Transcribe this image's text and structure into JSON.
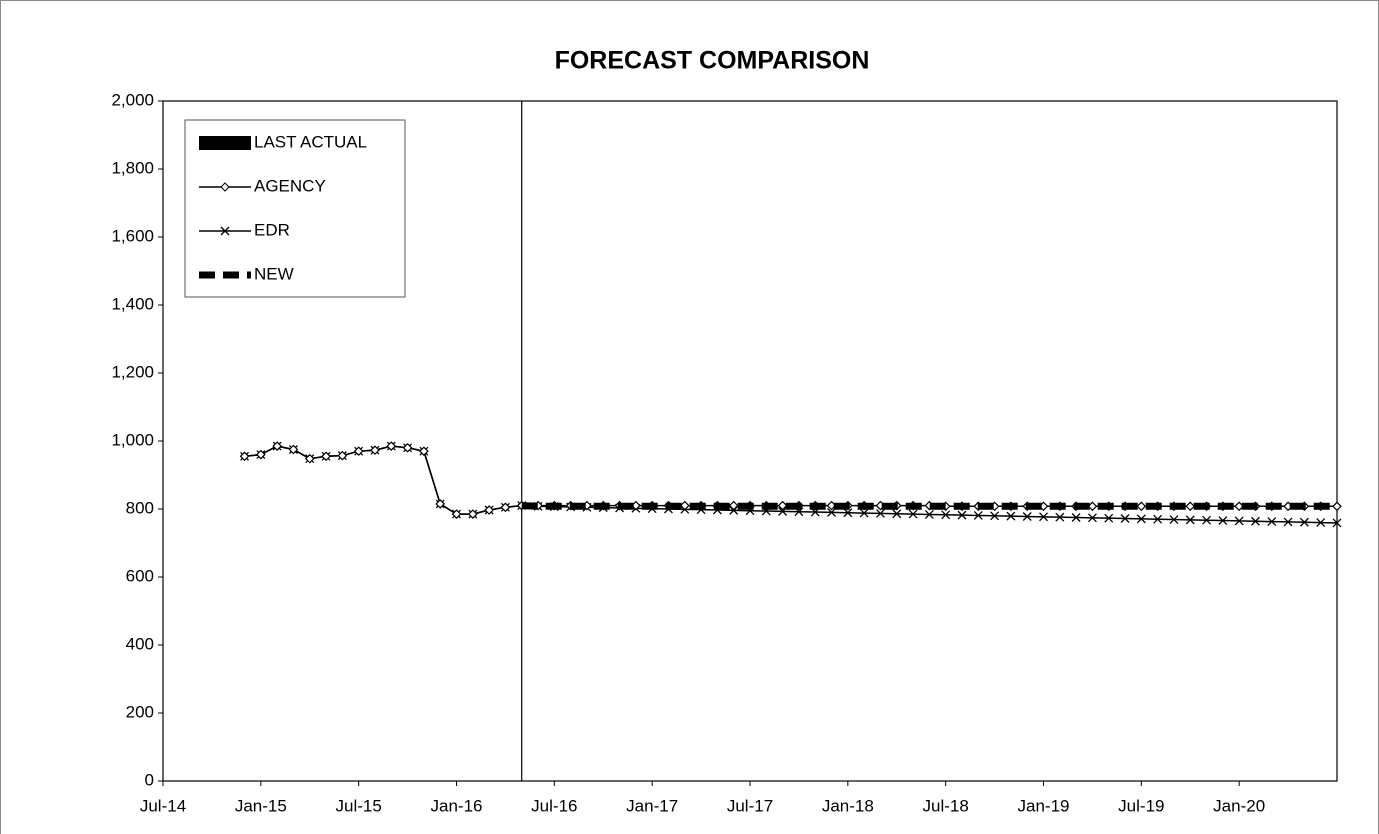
{
  "chart_data": {
    "type": "line",
    "title": "FORECAST COMPARISON",
    "categories": [
      "Jul-14",
      null,
      null,
      null,
      null,
      null,
      "Jan-15",
      null,
      null,
      null,
      null,
      null,
      "Jul-15",
      null,
      null,
      null,
      null,
      null,
      "Jan-16",
      null,
      null,
      null,
      null,
      null,
      "Jul-16",
      null,
      null,
      null,
      null,
      null,
      "Jan-17",
      null,
      null,
      null,
      null,
      null,
      "Jul-17",
      null,
      null,
      null,
      null,
      null,
      "Jan-18",
      null,
      null,
      null,
      null,
      null,
      "Jul-18",
      null,
      null,
      null,
      null,
      null,
      "Jan-19",
      null,
      null,
      null,
      null,
      null,
      "Jul-19",
      null,
      null,
      null,
      null,
      null,
      "Jan-20",
      null,
      null,
      null,
      null,
      null,
      null
    ],
    "series": [
      {
        "name": "LAST ACTUAL",
        "type": "bar",
        "color": "#000000",
        "values": [
          null,
          null,
          null,
          null,
          null,
          null,
          null,
          null,
          null,
          null,
          null,
          null,
          null,
          null,
          null,
          null,
          null,
          null,
          null,
          null,
          null,
          null,
          2000,
          null,
          null,
          null,
          null,
          null,
          null,
          null,
          null,
          null,
          null,
          null,
          null,
          null,
          null,
          null,
          null,
          null,
          null,
          null,
          null,
          null,
          null,
          null,
          null,
          null,
          null,
          null,
          null,
          null,
          null,
          null,
          null,
          null,
          null,
          null,
          null,
          null,
          null,
          null,
          null,
          null,
          null,
          null,
          null,
          null,
          null,
          null,
          null,
          null,
          null
        ]
      },
      {
        "name": "AGENCY",
        "type": "line",
        "marker": "diamond",
        "color": "#000000",
        "values": [
          null,
          null,
          null,
          null,
          null,
          955,
          960,
          985,
          975,
          948,
          955,
          957,
          970,
          973,
          985,
          980,
          970,
          815,
          785,
          785,
          797,
          805,
          810,
          810,
          810,
          810,
          810,
          810,
          810,
          810,
          810,
          810,
          810,
          810,
          810,
          810,
          810,
          810,
          810,
          810,
          810,
          810,
          810,
          810,
          810,
          810,
          810,
          810,
          808,
          808,
          808,
          808,
          808,
          808,
          808,
          808,
          808,
          808,
          808,
          808,
          808,
          808,
          808,
          808,
          808,
          808,
          808,
          808,
          808,
          808,
          808,
          808,
          808
        ]
      },
      {
        "name": "EDR",
        "type": "line",
        "marker": "x",
        "color": "#000000",
        "values": [
          null,
          null,
          null,
          null,
          null,
          955,
          960,
          985,
          975,
          948,
          955,
          957,
          970,
          973,
          985,
          980,
          970,
          815,
          785,
          785,
          797,
          805,
          810,
          808,
          807,
          806,
          805,
          804,
          803,
          802,
          801,
          800,
          799,
          798,
          797,
          796,
          795,
          794,
          793,
          792,
          791,
          790,
          789,
          788,
          787,
          786,
          785,
          784,
          783,
          782,
          781,
          780,
          779,
          778,
          777,
          776,
          775,
          774,
          773,
          772,
          771,
          770,
          769,
          768,
          767,
          766,
          765,
          764,
          763,
          762,
          761,
          760,
          759
        ]
      },
      {
        "name": "NEW",
        "type": "line",
        "dash": true,
        "color": "#000000",
        "values": [
          null,
          null,
          null,
          null,
          null,
          null,
          null,
          null,
          null,
          null,
          null,
          null,
          null,
          null,
          null,
          null,
          null,
          null,
          null,
          null,
          null,
          null,
          810,
          808,
          808,
          808,
          808,
          808,
          808,
          808,
          808,
          808,
          808,
          808,
          808,
          808,
          808,
          808,
          808,
          808,
          808,
          808,
          808,
          808,
          808,
          808,
          808,
          808,
          808,
          808,
          808,
          808,
          808,
          808,
          808,
          808,
          808,
          808,
          808,
          808,
          808,
          808,
          808,
          808,
          808,
          808,
          808,
          808,
          808,
          808,
          808,
          808,
          808
        ]
      }
    ],
    "ylim": [
      0,
      2000
    ],
    "yticks": [
      0,
      200,
      400,
      600,
      800,
      {
        "value": 1000,
        "label": "1,000"
      },
      {
        "value": 1200,
        "label": "1,200"
      },
      {
        "value": 1400,
        "label": "1,400"
      },
      {
        "value": 1600,
        "label": "1,600"
      },
      {
        "value": 1800,
        "label": "1,800"
      },
      {
        "value": 2000,
        "label": "2,000"
      }
    ],
    "legend": "top-left",
    "grid": false
  }
}
